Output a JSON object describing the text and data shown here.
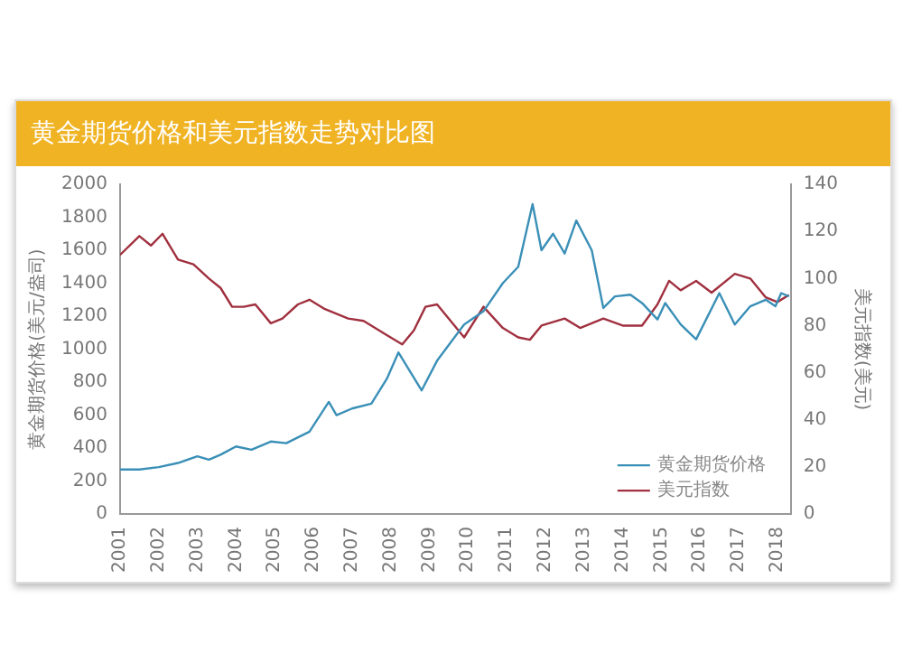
{
  "chart_data": {
    "type": "line",
    "title": "黄金期货价格和美元指数走势对比图",
    "ylabel": "黄金期货价格(美元/盎司)",
    "y2label": "美元指数(美元)",
    "xlim": [
      2001,
      2018.35
    ],
    "xticks": [
      2001,
      2002,
      2003,
      2004,
      2005,
      2006,
      2007,
      2008,
      2009,
      2010,
      2011,
      2012,
      2013,
      2014,
      2015,
      2016,
      2017,
      2018
    ],
    "ylim": [
      0,
      2000
    ],
    "yticks": [
      0,
      200,
      400,
      600,
      800,
      1000,
      1200,
      1400,
      1600,
      1800,
      2000
    ],
    "y2lim": [
      0,
      140
    ],
    "y2ticks": [
      0,
      20,
      40,
      60,
      80,
      100,
      120,
      140
    ],
    "legend": "bottom right",
    "grid": false,
    "marker": "none",
    "line_style": "solid",
    "series": [
      {
        "name": "黄金期货价格",
        "color": "#3a8fb7",
        "x": [
          2001.0,
          2001.5,
          2002.0,
          2002.5,
          2003.0,
          2003.3,
          2003.6,
          2004.0,
          2004.4,
          2004.9,
          2005.3,
          2005.9,
          2006.4,
          2006.6,
          2007.0,
          2007.5,
          2007.9,
          2008.2,
          2008.8,
          2009.2,
          2009.9,
          2010.4,
          2010.9,
          2011.3,
          2011.67,
          2011.9,
          2012.2,
          2012.5,
          2012.8,
          2013.2,
          2013.5,
          2013.8,
          2014.2,
          2014.5,
          2014.9,
          2015.1,
          2015.5,
          2015.9,
          2016.5,
          2016.9,
          2017.3,
          2017.7,
          2017.95,
          2018.1,
          2018.3
        ],
        "values": [
          270,
          270,
          285,
          310,
          350,
          330,
          360,
          410,
          390,
          440,
          430,
          500,
          680,
          600,
          640,
          670,
          820,
          980,
          750,
          930,
          1150,
          1230,
          1400,
          1500,
          1880,
          1600,
          1700,
          1580,
          1780,
          1600,
          1250,
          1320,
          1330,
          1280,
          1180,
          1280,
          1150,
          1060,
          1340,
          1150,
          1260,
          1300,
          1260,
          1340,
          1320
        ]
      },
      {
        "name": "美元指数",
        "color": "#a0303f",
        "axis": "y2",
        "x": [
          2001.0,
          2001.5,
          2001.8,
          2002.1,
          2002.5,
          2002.9,
          2003.3,
          2003.6,
          2003.9,
          2004.2,
          2004.5,
          2004.9,
          2005.2,
          2005.6,
          2005.9,
          2006.3,
          2006.9,
          2007.3,
          2007.9,
          2008.3,
          2008.6,
          2008.9,
          2009.2,
          2009.9,
          2010.4,
          2010.9,
          2011.3,
          2011.6,
          2011.9,
          2012.5,
          2012.9,
          2013.5,
          2014.0,
          2014.5,
          2014.9,
          2015.2,
          2015.5,
          2015.9,
          2016.3,
          2016.9,
          2017.3,
          2017.7,
          2018.0,
          2018.3
        ],
        "values": [
          110,
          118,
          114,
          119,
          108,
          106,
          100,
          96,
          88,
          88,
          89,
          81,
          83,
          89,
          91,
          87,
          83,
          82,
          76,
          72,
          78,
          88,
          89,
          75,
          88,
          79,
          75,
          74,
          80,
          83,
          79,
          83,
          80,
          80,
          89,
          99,
          95,
          99,
          94,
          102,
          100,
          92,
          90,
          93
        ]
      }
    ]
  }
}
